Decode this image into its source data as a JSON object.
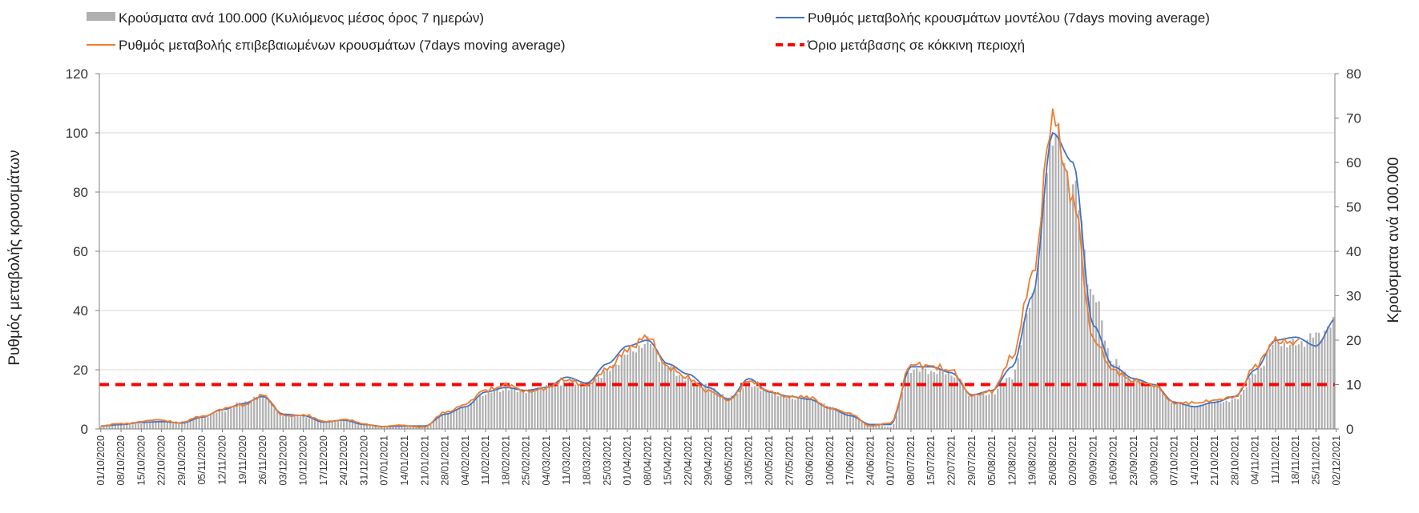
{
  "chart_data": {
    "type": "bar-line-combo",
    "title": "",
    "y_left_label": "Ρυθμός μεταβολής κρουσμάτων",
    "y_right_label": "Κρούσματα ανά 100.000",
    "y_left_range": [
      0,
      120
    ],
    "y_left_ticks": [
      "0",
      "20",
      "40",
      "60",
      "80",
      "100",
      "120"
    ],
    "y_right_range": [
      0,
      80
    ],
    "y_right_ticks": [
      "0",
      "10",
      "20",
      "30",
      "40",
      "50",
      "60",
      "70",
      "80"
    ],
    "grid": "horizontal",
    "legend_position": "top",
    "x_start": "01/10/2020",
    "x_end": "02/12/2021",
    "x_tick_labels": [
      "01/10/2020",
      "08/10/2020",
      "15/10/2020",
      "22/10/2020",
      "29/10/2020",
      "05/11/2020",
      "12/11/2020",
      "19/11/2020",
      "26/11/2020",
      "03/12/2020",
      "10/12/2020",
      "17/12/2020",
      "24/12/2020",
      "31/12/2020",
      "07/01/2021",
      "14/01/2021",
      "21/01/2021",
      "28/01/2021",
      "04/02/2021",
      "11/02/2021",
      "18/02/2021",
      "25/02/2021",
      "04/03/2021",
      "11/03/2021",
      "18/03/2021",
      "25/03/2021",
      "01/04/2021",
      "08/04/2021",
      "15/04/2021",
      "22/04/2021",
      "29/04/2021",
      "06/05/2021",
      "13/05/2021",
      "20/05/2021",
      "27/05/2021",
      "03/06/2021",
      "10/06/2021",
      "17/06/2021",
      "24/06/2021",
      "01/07/2021",
      "08/07/2021",
      "15/07/2021",
      "22/07/2021",
      "29/07/2021",
      "05/08/2021",
      "12/08/2021",
      "19/08/2021",
      "26/08/2021",
      "02/09/2021",
      "09/09/2021",
      "16/09/2021",
      "23/09/2021",
      "30/09/2021",
      "07/10/2021",
      "14/10/2021",
      "21/10/2021",
      "28/10/2021",
      "04/11/2021",
      "11/11/2021",
      "18/11/2021",
      "25/11/2021",
      "02/12/2021"
    ],
    "weekly_dates": [
      "01/10/2020",
      "08/10/2020",
      "15/10/2020",
      "22/10/2020",
      "29/10/2020",
      "05/11/2020",
      "12/11/2020",
      "19/11/2020",
      "26/11/2020",
      "03/12/2020",
      "10/12/2020",
      "17/12/2020",
      "24/12/2020",
      "31/12/2020",
      "07/01/2021",
      "14/01/2021",
      "21/01/2021",
      "28/01/2021",
      "04/02/2021",
      "11/02/2021",
      "18/02/2021",
      "25/02/2021",
      "04/03/2021",
      "11/03/2021",
      "18/03/2021",
      "25/03/2021",
      "01/04/2021",
      "08/04/2021",
      "15/04/2021",
      "22/04/2021",
      "29/04/2021",
      "06/05/2021",
      "13/05/2021",
      "20/05/2021",
      "27/05/2021",
      "03/06/2021",
      "10/06/2021",
      "17/06/2021",
      "24/06/2021",
      "01/07/2021",
      "08/07/2021",
      "15/07/2021",
      "22/07/2021",
      "29/07/2021",
      "05/08/2021",
      "12/08/2021",
      "19/08/2021",
      "26/08/2021",
      "02/09/2021",
      "09/09/2021",
      "16/09/2021",
      "23/09/2021",
      "30/09/2021",
      "07/10/2021",
      "14/10/2021",
      "21/10/2021",
      "28/10/2021",
      "04/11/2021",
      "11/11/2021",
      "18/11/2021",
      "25/11/2021",
      "02/12/2021"
    ],
    "series": [
      {
        "name": "Κρούσματα ανά 100.000 (Κυλιόμενος μέσος όρος 7 ημερών)",
        "kind": "bar",
        "axis": "right",
        "color": "#b0b0b0",
        "values": [
          0.5,
          1.0,
          1.2,
          1.7,
          1.3,
          2.7,
          4.0,
          6.0,
          7.5,
          3.0,
          2.8,
          1.5,
          2.0,
          1.0,
          0.5,
          0.6,
          0.5,
          3.5,
          5.0,
          8.0,
          9.0,
          8.5,
          9.5,
          10.5,
          10.0,
          13.0,
          17.0,
          19.5,
          14.0,
          11.0,
          9.5,
          7.0,
          10.0,
          8.5,
          7.0,
          7.0,
          5.0,
          3.5,
          1.0,
          0.5,
          13.5,
          13.0,
          12.5,
          7.5,
          8.0,
          12.0,
          30.0,
          67.0,
          55.0,
          30.0,
          15.0,
          11.0,
          10.0,
          6.0,
          5.0,
          6.0,
          6.5,
          12.5,
          19.5,
          19.0,
          21.0,
          24.0
        ]
      },
      {
        "name": "Ρυθμός μεταβολής κρουσμάτων μοντέλου (7days moving average)",
        "kind": "line",
        "axis": "left",
        "color": "#4472c4",
        "values": [
          1.0,
          1.5,
          2.2,
          2.5,
          2.0,
          4.0,
          6.5,
          8.5,
          11.0,
          5.0,
          4.5,
          2.3,
          3.0,
          1.5,
          0.8,
          1.0,
          1.0,
          5.0,
          7.5,
          12.5,
          14.0,
          13.0,
          14.0,
          17.5,
          15.5,
          22.0,
          28.0,
          30.0,
          22.0,
          18.5,
          14.0,
          10.0,
          17.0,
          12.5,
          11.0,
          10.0,
          7.0,
          4.5,
          1.5,
          1.5,
          21.0,
          21.0,
          19.0,
          11.5,
          13.0,
          21.0,
          45.0,
          100.0,
          90.0,
          35.0,
          21.0,
          17.0,
          15.0,
          9.0,
          7.5,
          9.0,
          11.0,
          20.0,
          30.0,
          31.0,
          28.0,
          37.5
        ]
      },
      {
        "name": "Ρυθμός μεταβολής επιβεβαιωμένων κρουσμάτων (7days moving average)",
        "kind": "line",
        "axis": "left",
        "color": "#ed7d31",
        "values": [
          0.8,
          1.8,
          2.5,
          3.0,
          2.2,
          4.2,
          6.8,
          8.0,
          11.5,
          4.5,
          4.8,
          2.5,
          3.3,
          1.6,
          0.9,
          1.1,
          0.8,
          5.5,
          8.5,
          13.0,
          15.0,
          12.5,
          14.0,
          16.5,
          15.0,
          20.0,
          27.0,
          31.0,
          21.0,
          17.0,
          13.0,
          9.5,
          16.5,
          12.5,
          11.0,
          10.5,
          7.2,
          5.0,
          1.2,
          1.8,
          22.0,
          21.0,
          20.0,
          11.0,
          13.0,
          24.0,
          52.0,
          105.0,
          78.0,
          30.0,
          20.0,
          16.0,
          15.0,
          8.5,
          9.0,
          9.5,
          11.0,
          21.0,
          30.0,
          29.0,
          33.0,
          null
        ]
      },
      {
        "name": "Όριο μετάβασης σε κόκκινη περιοχή",
        "kind": "threshold",
        "axis": "right",
        "color": "#ff0000",
        "value": 10
      }
    ]
  }
}
